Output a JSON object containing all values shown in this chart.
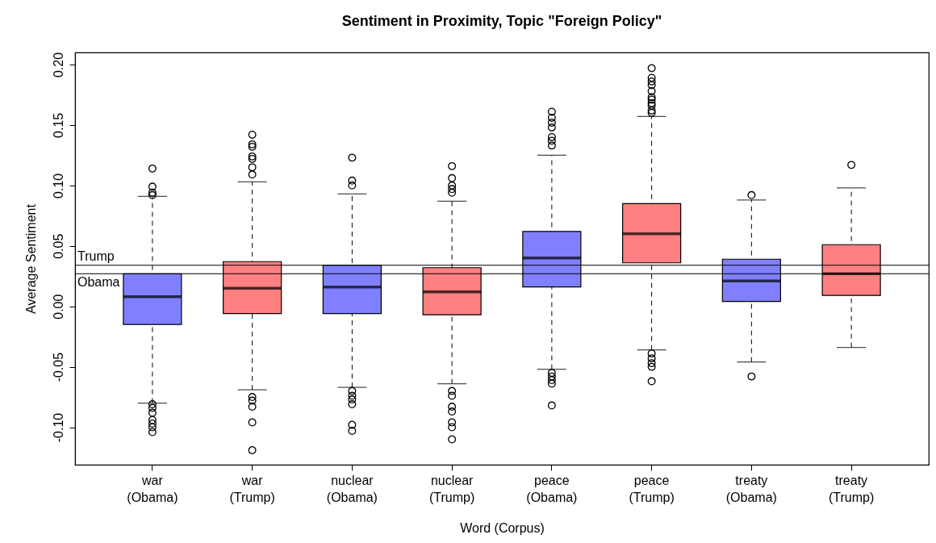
{
  "chart_data": {
    "type": "box",
    "title": "Sentiment in Proximity, Topic \"Foreign Policy\"",
    "xlabel": "Word (Corpus)",
    "ylabel": "Average Sentiment",
    "categories": [
      "war\n(Obama)",
      "war\n(Trump)",
      "nuclear\n(Obama)",
      "nuclear\n(Trump)",
      "peace\n(Obama)",
      "peace\n(Trump)",
      "treaty\n(Obama)",
      "treaty\n(Trump)"
    ],
    "colors": [
      "#8080ff",
      "#ff8080",
      "#8080ff",
      "#ff8080",
      "#8080ff",
      "#ff8080",
      "#8080ff",
      "#ff8080"
    ],
    "boxes": [
      {
        "low": -0.08,
        "q1": -0.015,
        "median": 0.008,
        "q3": 0.027,
        "high": 0.091,
        "outliers": [
          0.114,
          0.099,
          0.094,
          0.092,
          -0.081,
          -0.084,
          -0.088,
          -0.094,
          -0.097,
          -0.1,
          -0.104
        ]
      },
      {
        "low": -0.069,
        "q1": -0.006,
        "median": 0.015,
        "q3": 0.037,
        "high": 0.103,
        "outliers": [
          0.142,
          0.134,
          0.132,
          0.124,
          0.122,
          0.115,
          0.109,
          -0.075,
          -0.078,
          -0.083,
          -0.096,
          -0.119
        ]
      },
      {
        "low": -0.067,
        "q1": -0.006,
        "median": 0.016,
        "q3": 0.034,
        "high": 0.093,
        "outliers": [
          0.123,
          0.104,
          0.1,
          -0.07,
          -0.074,
          -0.077,
          -0.081,
          -0.098,
          -0.103
        ]
      },
      {
        "low": -0.064,
        "q1": -0.007,
        "median": 0.012,
        "q3": 0.032,
        "high": 0.087,
        "outliers": [
          0.116,
          0.106,
          0.1,
          0.097,
          0.094,
          -0.07,
          -0.074,
          -0.083,
          -0.087,
          -0.096,
          -0.1,
          -0.11
        ]
      },
      {
        "low": -0.052,
        "q1": 0.016,
        "median": 0.04,
        "q3": 0.062,
        "high": 0.125,
        "outliers": [
          0.161,
          0.156,
          0.152,
          0.148,
          0.14,
          0.137,
          0.133,
          -0.055,
          -0.058,
          -0.061,
          -0.064,
          -0.082
        ]
      },
      {
        "low": -0.036,
        "q1": 0.036,
        "median": 0.06,
        "q3": 0.085,
        "high": 0.157,
        "outliers": [
          0.197,
          0.189,
          0.186,
          0.183,
          0.178,
          0.173,
          0.171,
          0.168,
          0.166,
          0.162,
          0.16,
          -0.039,
          -0.043,
          -0.047,
          -0.05,
          -0.062
        ]
      },
      {
        "low": -0.046,
        "q1": 0.004,
        "median": 0.021,
        "q3": 0.039,
        "high": 0.088,
        "outliers": [
          0.092,
          -0.058
        ]
      },
      {
        "low": -0.034,
        "q1": 0.009,
        "median": 0.027,
        "q3": 0.051,
        "high": 0.098,
        "outliers": [
          0.117
        ]
      }
    ],
    "ylim": [
      -0.131,
      0.21
    ],
    "yticks": [
      {
        "value": -0.1,
        "label": "-0.10"
      },
      {
        "value": -0.05,
        "label": "-0.05"
      },
      {
        "value": 0,
        "label": "0.00"
      },
      {
        "value": 0.05,
        "label": "0.05"
      },
      {
        "value": 0.1,
        "label": "0.10"
      },
      {
        "value": 0.15,
        "label": "0.15"
      },
      {
        "value": 0.2,
        "label": "0.20"
      }
    ],
    "ref_lines": [
      {
        "axis": "y",
        "value": 0.034,
        "label": "Trump"
      },
      {
        "axis": "y",
        "value": 0.027,
        "label": "Obama"
      }
    ]
  }
}
